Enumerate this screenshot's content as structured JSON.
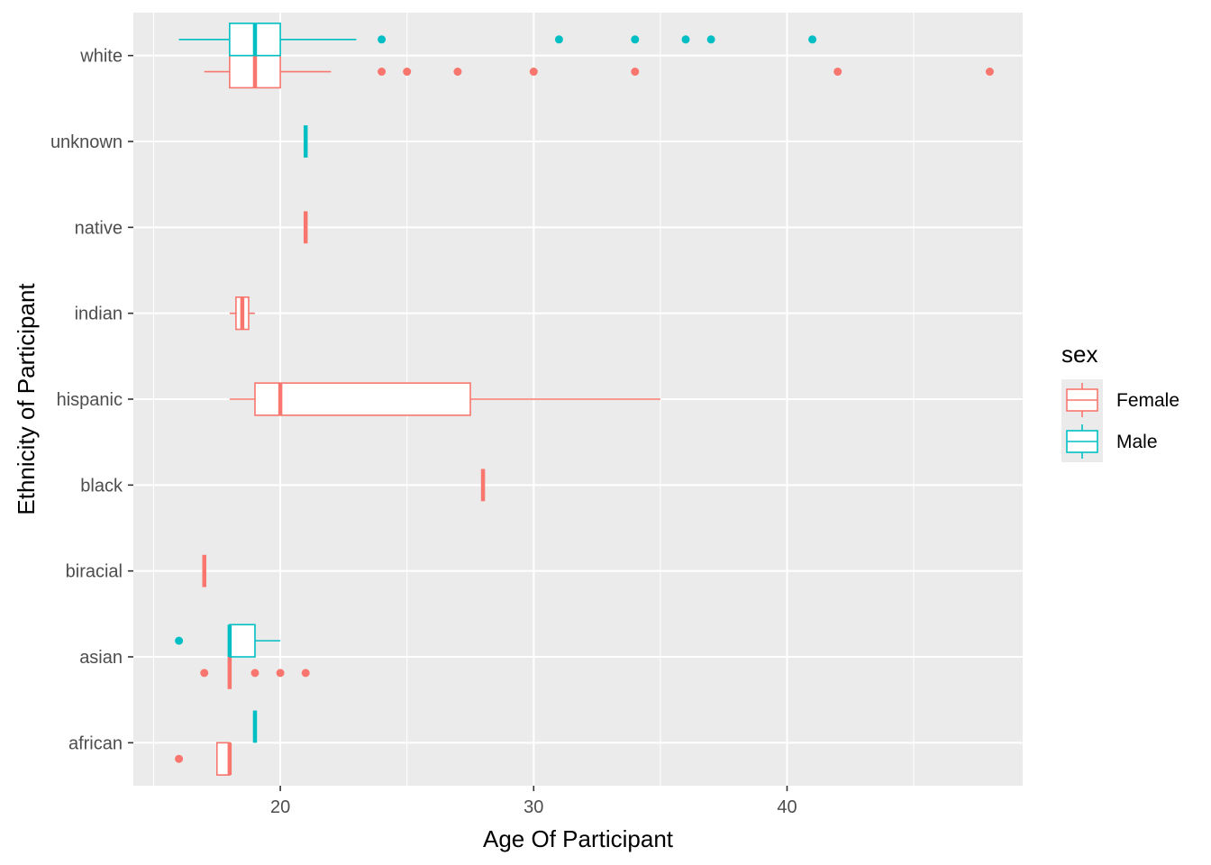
{
  "chart_data": {
    "type": "boxplot",
    "orientation": "horizontal",
    "xlabel": "Age Of Participant",
    "ylabel": "Ethnicity of Participant",
    "xlim": [
      14.2,
      49.3
    ],
    "x_ticks": [
      20,
      30,
      40
    ],
    "x_tick_labels": [
      "20",
      "30",
      "40"
    ],
    "categories": [
      "african",
      "asian",
      "biracial",
      "black",
      "hispanic",
      "indian",
      "native",
      "unknown",
      "white"
    ],
    "grid": true,
    "panel_background": "#EBEBEB",
    "legend": {
      "title": "sex",
      "position": "right",
      "entries": [
        {
          "label": "Female",
          "color": "#F8766D"
        },
        {
          "label": "Male",
          "color": "#00BFC4"
        }
      ]
    },
    "series": [
      {
        "name": "Female",
        "color": "#F8766D",
        "boxes": [
          {
            "category": "african",
            "min": 17.5,
            "q1": 17.5,
            "median": 18,
            "q3": 18,
            "max": 18,
            "outliers": [
              16
            ]
          },
          {
            "category": "asian",
            "min": 18,
            "q1": 18,
            "median": 18,
            "q3": 18,
            "max": 18,
            "outliers": [
              17,
              19,
              20,
              21
            ]
          },
          {
            "category": "biracial",
            "min": 17,
            "q1": 17,
            "median": 17,
            "q3": 17,
            "max": 17,
            "outliers": []
          },
          {
            "category": "black",
            "min": 28,
            "q1": 28,
            "median": 28,
            "q3": 28,
            "max": 28,
            "outliers": []
          },
          {
            "category": "hispanic",
            "min": 18,
            "q1": 19,
            "median": 20,
            "q3": 27.5,
            "max": 35,
            "outliers": []
          },
          {
            "category": "indian",
            "min": 18,
            "q1": 18.25,
            "median": 18.5,
            "q3": 18.75,
            "max": 19,
            "outliers": []
          },
          {
            "category": "native",
            "min": 21,
            "q1": 21,
            "median": 21,
            "q3": 21,
            "max": 21,
            "outliers": []
          },
          {
            "category": "white",
            "min": 17,
            "q1": 18,
            "median": 19,
            "q3": 20,
            "max": 22,
            "outliers": [
              24,
              25,
              27,
              30,
              34,
              42,
              48
            ]
          }
        ]
      },
      {
        "name": "Male",
        "color": "#00BFC4",
        "boxes": [
          {
            "category": "african",
            "min": 19,
            "q1": 19,
            "median": 19,
            "q3": 19,
            "max": 19,
            "outliers": []
          },
          {
            "category": "asian",
            "min": 18,
            "q1": 18,
            "median": 18,
            "q3": 19,
            "max": 20,
            "outliers": [
              16
            ]
          },
          {
            "category": "unknown",
            "min": 21,
            "q1": 21,
            "median": 21,
            "q3": 21,
            "max": 21,
            "outliers": []
          },
          {
            "category": "white",
            "min": 16,
            "q1": 18,
            "median": 19,
            "q3": 20,
            "max": 23,
            "outliers": [
              24,
              31,
              34,
              36,
              37,
              41
            ]
          }
        ]
      }
    ]
  }
}
